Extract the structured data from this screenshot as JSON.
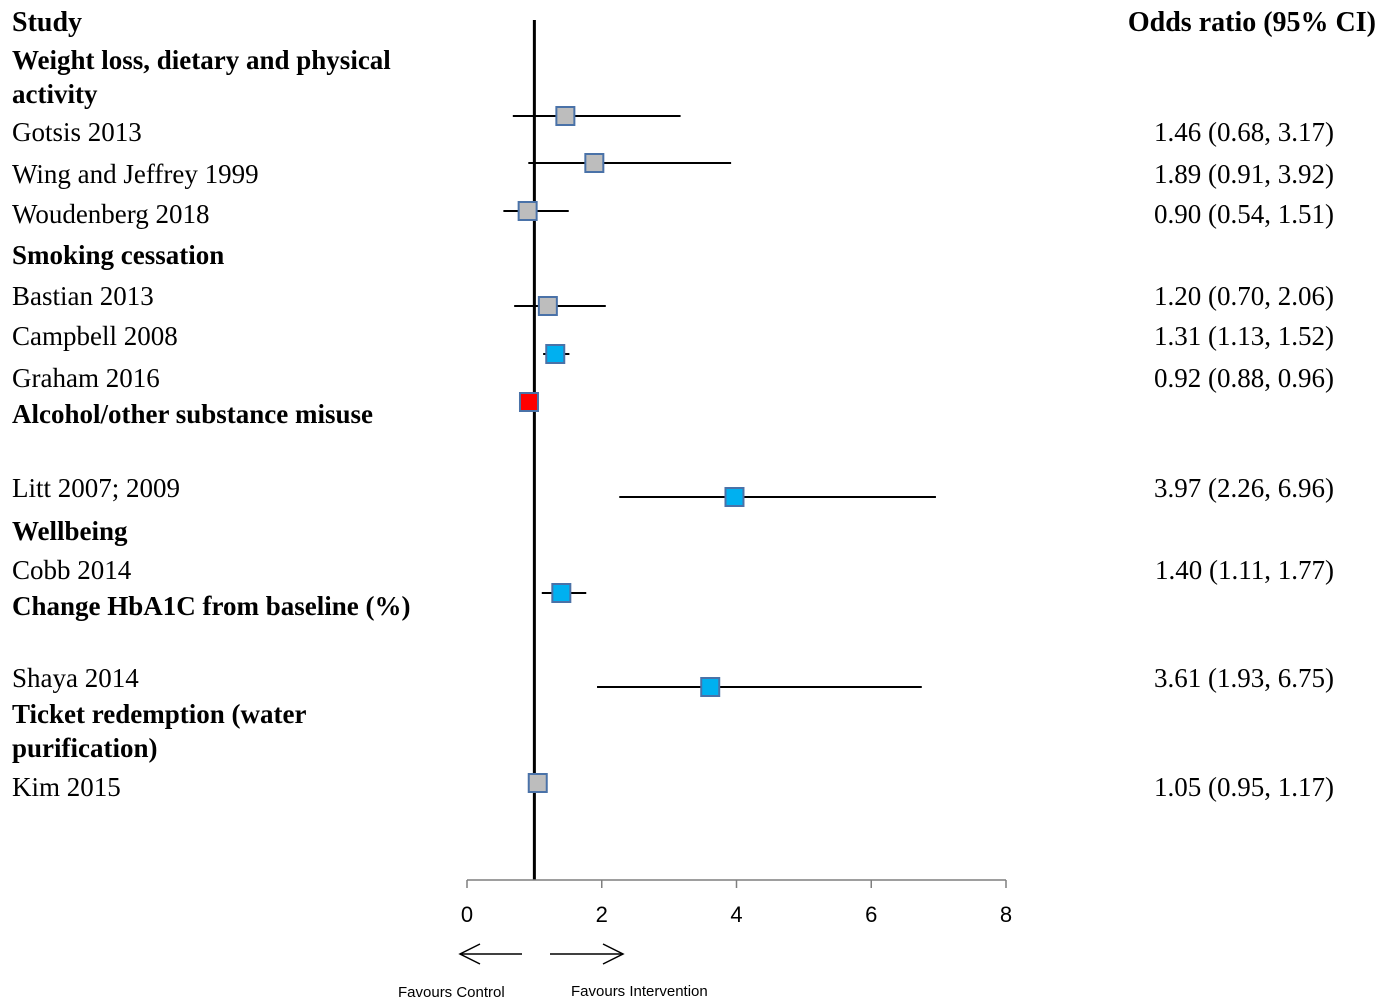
{
  "header": {
    "study": "Study",
    "odds_ratio": "Odds ratio (95% CI)"
  },
  "direction": {
    "left": "Favours Control",
    "right": "Favours Intervention"
  },
  "colors": {
    "grey": "#bdbdbd",
    "blue": "#00b0f0",
    "red": "#ff0000",
    "marker_edge": "#4a72a8"
  },
  "chart_data": {
    "type": "forest",
    "xlim": [
      0,
      8
    ],
    "xticks": [
      "0",
      "2",
      "4",
      "6",
      "8"
    ],
    "reference_line": 1,
    "rows": [
      {
        "kind": "group",
        "label": "Weight loss, dietary and physical activity"
      },
      {
        "kind": "study",
        "label": "Gotsis 2013",
        "or": 1.46,
        "lo": 0.68,
        "hi": 3.17,
        "ci_text": "1.46 (0.68, 3.17)",
        "color": "grey"
      },
      {
        "kind": "study",
        "label": "Wing and Jeffrey 1999",
        "or": 1.89,
        "lo": 0.91,
        "hi": 3.92,
        "ci_text": "1.89 (0.91, 3.92)",
        "color": "grey"
      },
      {
        "kind": "study",
        "label": "Woudenberg 2018",
        "or": 0.9,
        "lo": 0.54,
        "hi": 1.51,
        "ci_text": "0.90 (0.54, 1.51)",
        "color": "grey"
      },
      {
        "kind": "group",
        "label": "Smoking cessation"
      },
      {
        "kind": "study",
        "label": "Bastian 2013",
        "or": 1.2,
        "lo": 0.7,
        "hi": 2.06,
        "ci_text": "1.20 (0.70, 2.06)",
        "color": "grey"
      },
      {
        "kind": "study",
        "label": "Campbell 2008",
        "or": 1.31,
        "lo": 1.13,
        "hi": 1.52,
        "ci_text": "1.31 (1.13, 1.52)",
        "color": "blue"
      },
      {
        "kind": "study",
        "label": "Graham 2016",
        "or": 0.92,
        "lo": 0.88,
        "hi": 0.96,
        "ci_text": "0.92 (0.88, 0.96)",
        "color": "red"
      },
      {
        "kind": "group",
        "label": "Alcohol/other substance misuse"
      },
      {
        "kind": "study",
        "label": "Litt 2007; 2009",
        "or": 3.97,
        "lo": 2.26,
        "hi": 6.96,
        "ci_text": "3.97 (2.26, 6.96)",
        "color": "blue"
      },
      {
        "kind": "group",
        "label": "Wellbeing"
      },
      {
        "kind": "study",
        "label": "Cobb 2014",
        "or": 1.4,
        "lo": 1.11,
        "hi": 1.77,
        "ci_text": "1.40 (1.11, 1.77)",
        "color": "blue"
      },
      {
        "kind": "group",
        "label": "Change HbA1C from baseline (%)"
      },
      {
        "kind": "study",
        "label": "Shaya 2014",
        "or": 3.61,
        "lo": 1.93,
        "hi": 6.75,
        "ci_text": "3.61 (1.93, 6.75)",
        "color": "blue"
      },
      {
        "kind": "group",
        "label": "Ticket redemption (water purification)"
      },
      {
        "kind": "study",
        "label": "Kim 2015",
        "or": 1.05,
        "lo": 0.95,
        "hi": 1.17,
        "ci_text": "1.05 (0.95, 1.17)",
        "color": "grey"
      }
    ]
  }
}
